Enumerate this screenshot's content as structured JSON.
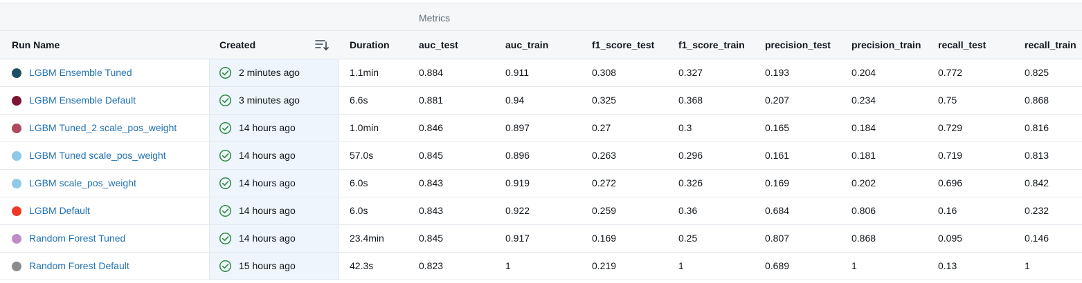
{
  "table": {
    "group_header": "Metrics",
    "columns": [
      {
        "key": "run_name",
        "label": "Run Name"
      },
      {
        "key": "created",
        "label": "Created"
      },
      {
        "key": "duration",
        "label": "Duration"
      },
      {
        "key": "auc_test",
        "label": "auc_test"
      },
      {
        "key": "auc_train",
        "label": "auc_train"
      },
      {
        "key": "f1_score_test",
        "label": "f1_score_test"
      },
      {
        "key": "f1_score_train",
        "label": "f1_score_train"
      },
      {
        "key": "precision_test",
        "label": "precision_test"
      },
      {
        "key": "precision_train",
        "label": "precision_train"
      },
      {
        "key": "recall_test",
        "label": "recall_test"
      },
      {
        "key": "recall_train",
        "label": "recall_train"
      }
    ],
    "sort_icon": "sort-descending-icon",
    "status_icon": "check-circle-icon",
    "status_color": "#2e8b3e",
    "link_color": "#2272b4",
    "rows": [
      {
        "name": "LGBM Ensemble Tuned",
        "color": "#1f5061",
        "created": "2 minutes ago",
        "duration": "1.1min",
        "auc_test": "0.884",
        "auc_train": "0.911",
        "f1_score_test": "0.308",
        "f1_score_train": "0.327",
        "precision_test": "0.193",
        "precision_train": "0.204",
        "recall_test": "0.772",
        "recall_train": "0.825"
      },
      {
        "name": "LGBM Ensemble Default",
        "color": "#7c1434",
        "created": "3 minutes ago",
        "duration": "6.6s",
        "auc_test": "0.881",
        "auc_train": "0.94",
        "f1_score_test": "0.325",
        "f1_score_train": "0.368",
        "precision_test": "0.207",
        "precision_train": "0.234",
        "recall_test": "0.75",
        "recall_train": "0.868"
      },
      {
        "name": "LGBM Tuned_2 scale_pos_weight",
        "color": "#b04a60",
        "created": "14 hours ago",
        "duration": "1.0min",
        "auc_test": "0.846",
        "auc_train": "0.897",
        "f1_score_test": "0.27",
        "f1_score_train": "0.3",
        "precision_test": "0.165",
        "precision_train": "0.184",
        "recall_test": "0.729",
        "recall_train": "0.816"
      },
      {
        "name": "LGBM Tuned scale_pos_weight",
        "color": "#8ecae6",
        "created": "14 hours ago",
        "duration": "57.0s",
        "auc_test": "0.845",
        "auc_train": "0.896",
        "f1_score_test": "0.263",
        "f1_score_train": "0.296",
        "precision_test": "0.161",
        "precision_train": "0.181",
        "recall_test": "0.719",
        "recall_train": "0.813"
      },
      {
        "name": "LGBM scale_pos_weight",
        "color": "#8ecae6",
        "created": "14 hours ago",
        "duration": "6.0s",
        "auc_test": "0.843",
        "auc_train": "0.919",
        "f1_score_test": "0.272",
        "f1_score_train": "0.326",
        "precision_test": "0.169",
        "precision_train": "0.202",
        "recall_test": "0.696",
        "recall_train": "0.842"
      },
      {
        "name": "LGBM Default",
        "color": "#ee3a24",
        "created": "14 hours ago",
        "duration": "6.0s",
        "auc_test": "0.843",
        "auc_train": "0.922",
        "f1_score_test": "0.259",
        "f1_score_train": "0.36",
        "precision_test": "0.684",
        "precision_train": "0.806",
        "recall_test": "0.16",
        "recall_train": "0.232"
      },
      {
        "name": "Random Forest Tuned",
        "color": "#c08cc8",
        "created": "14 hours ago",
        "duration": "23.4min",
        "auc_test": "0.845",
        "auc_train": "0.917",
        "f1_score_test": "0.169",
        "f1_score_train": "0.25",
        "precision_test": "0.807",
        "precision_train": "0.868",
        "recall_test": "0.095",
        "recall_train": "0.146"
      },
      {
        "name": "Random Forest Default",
        "color": "#8c8c8c",
        "created": "15 hours ago",
        "duration": "42.3s",
        "auc_test": "0.823",
        "auc_train": "1",
        "f1_score_test": "0.219",
        "f1_score_train": "1",
        "precision_test": "0.689",
        "precision_train": "1",
        "recall_test": "0.13",
        "recall_train": "1"
      }
    ]
  }
}
